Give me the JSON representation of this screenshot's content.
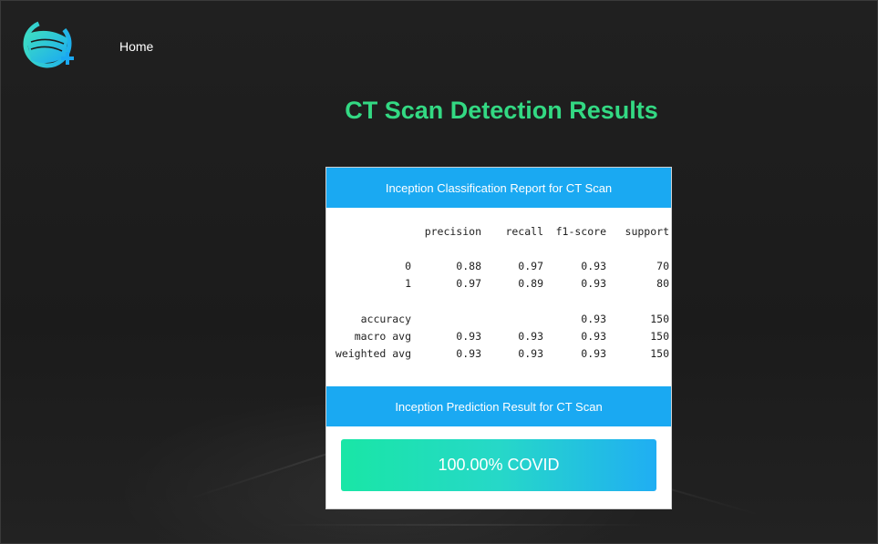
{
  "nav": {
    "logo_icon": "face-mask-plus-icon",
    "home_label": "Home"
  },
  "page": {
    "title": "CT Scan Detection Results"
  },
  "report_card": {
    "header": "Inception Classification Report for CT Scan",
    "columns": [
      "precision",
      "recall",
      "f1-score",
      "support"
    ],
    "rows": [
      {
        "label": "0",
        "precision": "0.88",
        "recall": "0.97",
        "f1": "0.93",
        "support": "70"
      },
      {
        "label": "1",
        "precision": "0.97",
        "recall": "0.89",
        "f1": "0.93",
        "support": "80"
      },
      {
        "label": "accuracy",
        "precision": "",
        "recall": "",
        "f1": "0.93",
        "support": "150"
      },
      {
        "label": "macro avg",
        "precision": "0.93",
        "recall": "0.93",
        "f1": "0.93",
        "support": "150"
      },
      {
        "label": "weighted avg",
        "precision": "0.93",
        "recall": "0.93",
        "f1": "0.93",
        "support": "150"
      }
    ]
  },
  "prediction_card": {
    "header": "Inception Prediction Result for CT Scan",
    "result": "100.00% COVID"
  },
  "colors": {
    "background": "#1d1d1d",
    "title_green": "#33d983",
    "header_blue": "#1aa9f2",
    "result_gradient_start": "#19e6a6",
    "result_gradient_end": "#20aef3"
  }
}
